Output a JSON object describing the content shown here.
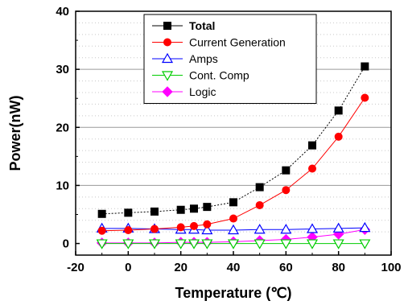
{
  "chart_data": {
    "type": "line",
    "xlabel": "Temperature (℃)",
    "ylabel": "Power(nW)",
    "xlim": [
      -20,
      100
    ],
    "ylim": [
      -2,
      40
    ],
    "xticks": [
      -20,
      0,
      20,
      40,
      60,
      80,
      100
    ],
    "yticks": [
      0,
      10,
      20,
      30,
      40
    ],
    "grid": "horizontal dotted",
    "legend_position": "top-center",
    "x": [
      -10,
      0,
      10,
      20,
      25,
      30,
      40,
      50,
      60,
      70,
      80,
      90
    ],
    "series": [
      {
        "name": "Total",
        "color": "#000000",
        "marker": "square-filled",
        "values": [
          5.1,
          5.3,
          5.5,
          5.8,
          6.0,
          6.3,
          7.1,
          9.7,
          12.6,
          16.9,
          22.9,
          30.5
        ]
      },
      {
        "name": "Current Generation",
        "color": "#ff0000",
        "marker": "circle-filled",
        "values": [
          2.2,
          2.3,
          2.5,
          2.8,
          3.0,
          3.3,
          4.3,
          6.6,
          9.2,
          12.9,
          18.4,
          25.1
        ]
      },
      {
        "name": "Amps",
        "color": "#0000ff",
        "marker": "triangle-up-open",
        "values": [
          2.6,
          2.6,
          2.5,
          2.4,
          2.4,
          2.3,
          2.3,
          2.4,
          2.4,
          2.5,
          2.6,
          2.7
        ]
      },
      {
        "name": "Cont. Comp",
        "color": "#00cc00",
        "marker": "triangle-down-open",
        "values": [
          0.0,
          0.0,
          0.0,
          0.0,
          0.0,
          0.0,
          0.0,
          0.0,
          0.0,
          0.0,
          0.0,
          0.0
        ]
      },
      {
        "name": "Logic",
        "color": "#ff00ff",
        "marker": "diamond-filled",
        "values": [
          0.1,
          0.1,
          0.1,
          0.2,
          0.2,
          0.2,
          0.3,
          0.5,
          0.7,
          1.1,
          1.6,
          2.4
        ]
      }
    ]
  }
}
